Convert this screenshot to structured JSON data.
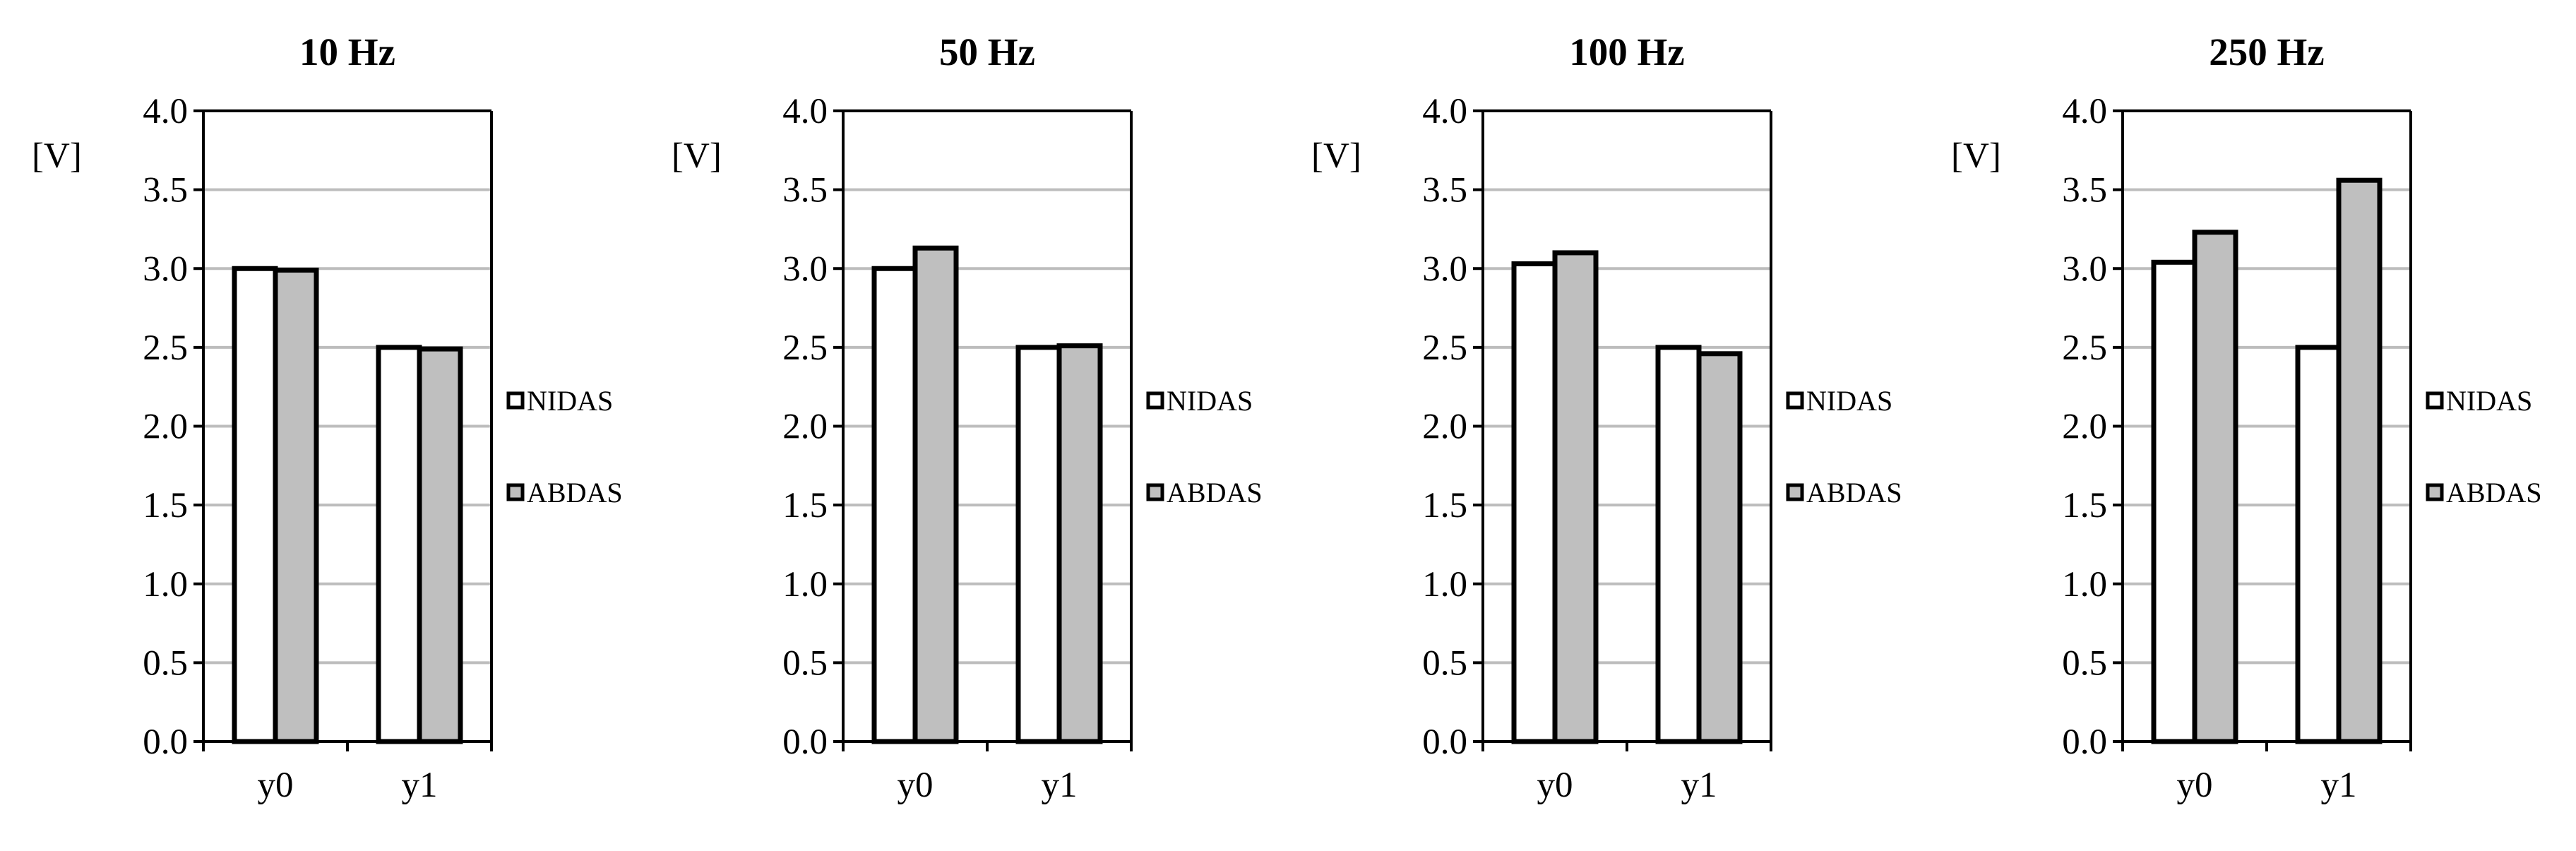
{
  "chart_data": [
    {
      "type": "bar",
      "title": "10 Hz",
      "ylabel": "[V]",
      "xlabel": "",
      "categories": [
        "y0",
        "y1"
      ],
      "ylim": [
        0,
        4
      ],
      "yticks": [
        "0.0",
        "0.5",
        "1.0",
        "1.5",
        "2.0",
        "2.5",
        "3.0",
        "3.5",
        "4.0"
      ],
      "grid": true,
      "legend_position": "right",
      "series": [
        {
          "name": "NIDAS",
          "values": [
            3.0,
            2.5
          ],
          "color": "#ffffff"
        },
        {
          "name": "ABDAS",
          "values": [
            2.99,
            2.49
          ],
          "color": "#bfbfbf"
        }
      ]
    },
    {
      "type": "bar",
      "title": "50 Hz",
      "ylabel": "[V]",
      "xlabel": "",
      "categories": [
        "y0",
        "y1"
      ],
      "ylim": [
        0,
        4
      ],
      "yticks": [
        "0.0",
        "0.5",
        "1.0",
        "1.5",
        "2.0",
        "2.5",
        "3.0",
        "3.5",
        "4.0"
      ],
      "grid": true,
      "legend_position": "right",
      "series": [
        {
          "name": "NIDAS",
          "values": [
            3.0,
            2.5
          ],
          "color": "#ffffff"
        },
        {
          "name": "ABDAS",
          "values": [
            3.13,
            2.51
          ],
          "color": "#bfbfbf"
        }
      ]
    },
    {
      "type": "bar",
      "title": "100 Hz",
      "ylabel": "[V]",
      "xlabel": "",
      "categories": [
        "y0",
        "y1"
      ],
      "ylim": [
        0,
        4
      ],
      "yticks": [
        "0.0",
        "0.5",
        "1.0",
        "1.5",
        "2.0",
        "2.5",
        "3.0",
        "3.5",
        "4.0"
      ],
      "grid": true,
      "legend_position": "right",
      "series": [
        {
          "name": "NIDAS",
          "values": [
            3.03,
            2.5
          ],
          "color": "#ffffff"
        },
        {
          "name": "ABDAS",
          "values": [
            3.1,
            2.46
          ],
          "color": "#bfbfbf"
        }
      ]
    },
    {
      "type": "bar",
      "title": "250 Hz",
      "ylabel": "[V]",
      "xlabel": "",
      "categories": [
        "y0",
        "y1"
      ],
      "ylim": [
        0,
        4
      ],
      "yticks": [
        "0.0",
        "0.5",
        "1.0",
        "1.5",
        "2.0",
        "2.5",
        "3.0",
        "3.5",
        "4.0"
      ],
      "grid": true,
      "legend_position": "right",
      "series": [
        {
          "name": "NIDAS",
          "values": [
            3.04,
            2.5
          ],
          "color": "#ffffff"
        },
        {
          "name": "ABDAS",
          "values": [
            3.23,
            3.56
          ],
          "color": "#bfbfbf"
        }
      ]
    }
  ]
}
